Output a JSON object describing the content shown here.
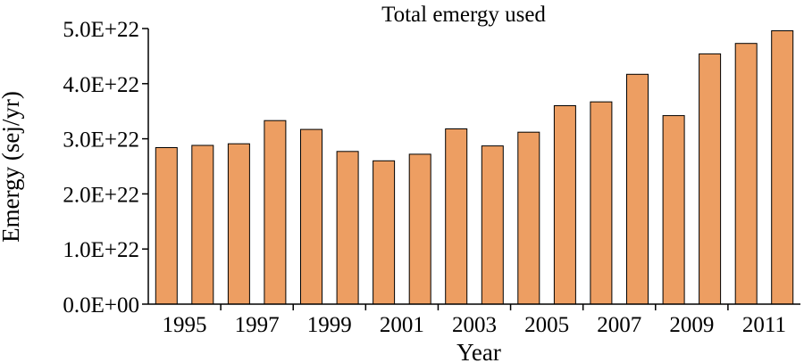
{
  "chart_data": {
    "type": "bar",
    "title": "Total emergy used",
    "xlabel": "Year",
    "ylabel": "Emergy (sej/yr)",
    "categories": [
      "1995",
      "1996",
      "1997",
      "1998",
      "1999",
      "2000",
      "2001",
      "2002",
      "2003",
      "2004",
      "2005",
      "2006",
      "2007",
      "2008",
      "2009",
      "2010",
      "2011",
      "2012"
    ],
    "x_tick_labels": [
      "1995",
      "1997",
      "1999",
      "2001",
      "2003",
      "2005",
      "2007",
      "2009",
      "2011"
    ],
    "values": [
      2.84e+22,
      2.88e+22,
      2.91e+22,
      3.33e+22,
      3.17e+22,
      2.77e+22,
      2.6e+22,
      2.72e+22,
      3.18e+22,
      2.87e+22,
      3.12e+22,
      3.6e+22,
      3.67e+22,
      4.17e+22,
      3.42e+22,
      4.54e+22,
      4.73e+22,
      4.96e+22
    ],
    "ylim": [
      0,
      5e+22
    ],
    "y_ticks": [
      0,
      1e+22,
      2e+22,
      3e+22,
      4e+22,
      5e+22
    ],
    "y_tick_labels": [
      "0.0E+00",
      "1.0E+22",
      "2.0E+22",
      "3.0E+22",
      "4.0E+22",
      "5.0E+22"
    ],
    "grid": false,
    "legend": "none",
    "bar_color": "#ed9e62",
    "bar_edge_color": "#000000"
  }
}
